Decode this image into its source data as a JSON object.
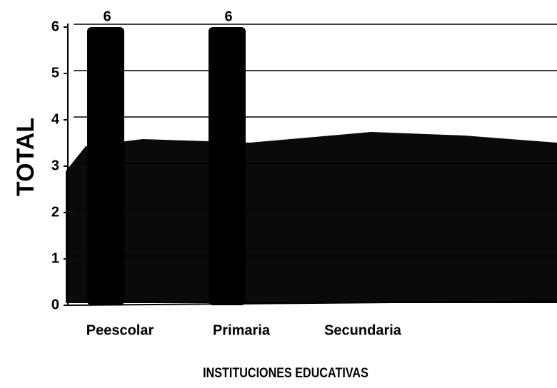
{
  "chart_data": {
    "type": "bar",
    "y_axis_label": "TOTAL",
    "x_axis_label": "INSTITUCIONES EDUCATIVAS",
    "categories": [
      "Peescolar",
      "Primaria",
      "Secundaria"
    ],
    "values": [
      6,
      6,
      null
    ],
    "color": "#000000",
    "ylim": [
      0,
      6
    ],
    "yticks": [
      0,
      1,
      2,
      3,
      4,
      5,
      6
    ],
    "grid": true
  }
}
